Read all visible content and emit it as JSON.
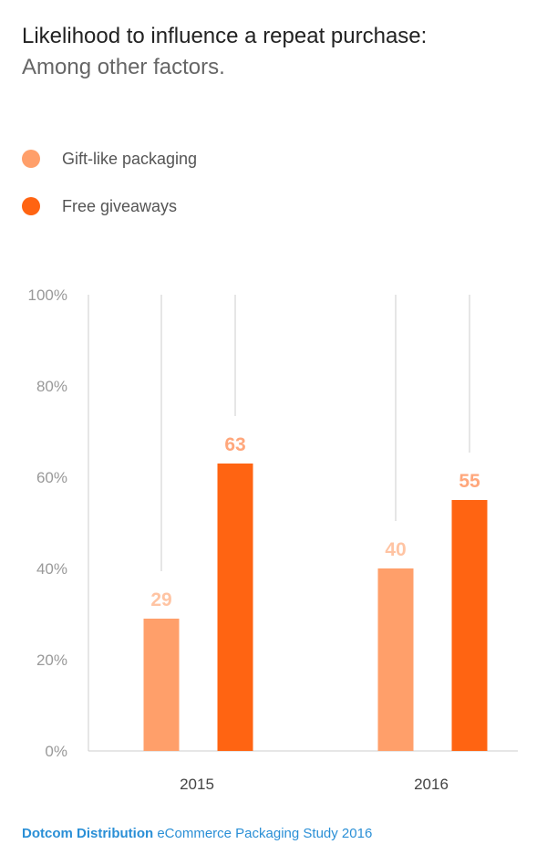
{
  "title": "Likelihood to influence a repeat purchase:",
  "subtitle": "Among other factors.",
  "footer": {
    "brand": "Dotcom Distribution",
    "text": " eCommerce Packaging Study 2016"
  },
  "colors": {
    "gift": "#ff9f6a",
    "giveaways": "#ff6412",
    "gift_label": "#ffc4a3",
    "giveaways_label": "#ffa77c",
    "axis_text": "#999999",
    "grid": "#cccccc"
  },
  "chart_data": {
    "type": "bar",
    "categories": [
      "2015",
      "2016"
    ],
    "series": [
      {
        "name": "Gift-like packaging",
        "values": [
          29,
          40
        ]
      },
      {
        "name": "Free giveaways",
        "values": [
          63,
          55
        ]
      }
    ],
    "ylim": [
      0,
      100
    ],
    "y_ticks": [
      "0%",
      "20%",
      "40%",
      "60%",
      "80%",
      "100%"
    ],
    "y_tick_values": [
      0,
      20,
      40,
      60,
      80,
      100
    ],
    "xlabel": "",
    "ylabel": "",
    "grid": false,
    "legend_position": "top-left",
    "data_labels": true
  }
}
